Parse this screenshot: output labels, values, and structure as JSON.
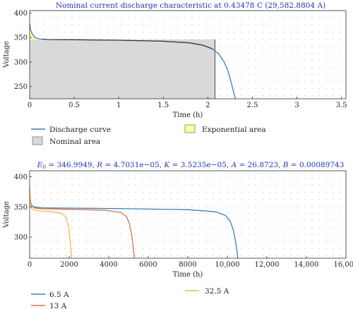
{
  "chart_data": [
    {
      "type": "area",
      "title": "Nominal current discharge characteristic at 0.43478 C (29,582.8804 A)",
      "xlabel": "Time (h)",
      "ylabel": "Voltage",
      "xlim": [
        0,
        3.55
      ],
      "ylim": [
        225,
        405
      ],
      "x_ticks": [
        0,
        0.5,
        1,
        1.5,
        2,
        2.5,
        3,
        3.5
      ],
      "x_tick_labels": [
        "0",
        "0.5",
        "1",
        "1.5",
        "2",
        "2.5",
        "3",
        "3.5"
      ],
      "y_ticks": [
        250,
        300,
        350,
        400
      ],
      "y_tick_labels": [
        "250",
        "300",
        "350",
        "400"
      ],
      "grid": "dotted",
      "legend_position": "bottom",
      "series": [
        {
          "name": "Discharge curve",
          "color": "#3b7fb8",
          "x": [
            0,
            0.01,
            0.03,
            0.06,
            0.1,
            0.15,
            0.2,
            0.5,
            1.0,
            1.5,
            1.8,
            1.95,
            2.05,
            2.12,
            2.18,
            2.22,
            2.26,
            2.29,
            2.31
          ],
          "y": [
            378,
            366,
            357,
            350,
            347.5,
            346.5,
            346,
            345.5,
            344.5,
            342.5,
            339,
            334,
            327,
            317,
            301,
            285,
            260,
            238,
            225
          ]
        },
        {
          "name": "Nominal area",
          "color": "#d9d9d9",
          "x": [
            0,
            2.08
          ],
          "y_top": 346
        },
        {
          "name": "Exponential area",
          "color": "#ffff99",
          "x": [
            0,
            0.15
          ]
        }
      ]
    },
    {
      "type": "line",
      "title": "E_0 = 346.9949, R = 4.7031e−05, K = 3.5235e−05, A = 26.8723, B = 0.00089743",
      "title_parts": {
        "e_symbol": "E",
        "e_subscript": "0",
        "e_value": " = 346.9949, ",
        "r_symbol": "R",
        "r_value": " = 4.7031e−05, ",
        "k_symbol": "K",
        "k_value": " = 3.5235e−05, ",
        "a_symbol": "A",
        "a_value": " = 26.8723, ",
        "b_symbol": "B",
        "b_value": " = 0.00089743"
      },
      "xlabel": "Time (h)",
      "ylabel": "Voltage",
      "xlim": [
        0,
        16000
      ],
      "ylim": [
        265,
        410
      ],
      "x_ticks": [
        0,
        2000,
        4000,
        6000,
        8000,
        10000,
        12000,
        14000,
        16000
      ],
      "x_tick_labels": [
        "0",
        "2000",
        "4000",
        "6000",
        "8000",
        "10,000",
        "12,000",
        "14,000",
        "16,000"
      ],
      "y_ticks": [
        300,
        350,
        400
      ],
      "y_tick_labels": [
        "300",
        "350",
        "400"
      ],
      "grid": "dotted",
      "legend_position": "bottom",
      "series": [
        {
          "name": "6.5 A",
          "color": "#3b7fb8",
          "x": [
            0,
            30,
            80,
            150,
            300,
            600,
            2000,
            5000,
            8000,
            9400,
            9900,
            10150,
            10300,
            10400,
            10480,
            10530
          ],
          "y": [
            372,
            362,
            354,
            351,
            349.5,
            348.5,
            348,
            347,
            345.5,
            342,
            336,
            326,
            312,
            296,
            280,
            265
          ]
        },
        {
          "name": "13 A",
          "color": "#d4734a",
          "x": [
            0,
            20,
            60,
            120,
            250,
            600,
            2000,
            3800,
            4600,
            4900,
            5050,
            5150,
            5220,
            5270,
            5300
          ],
          "y": [
            378,
            366,
            356,
            351,
            348,
            347,
            346,
            344.5,
            341,
            334,
            322,
            305,
            288,
            273,
            265
          ]
        },
        {
          "name": "32.5 A",
          "color": "#f2b84a",
          "x": [
            0,
            15,
            40,
            90,
            200,
            500,
            1200,
            1650,
            1850,
            1960,
            2030,
            2080,
            2110
          ],
          "y": [
            385,
            368,
            356,
            348,
            345,
            343.5,
            342,
            339,
            332,
            318,
            300,
            282,
            265
          ]
        }
      ]
    }
  ]
}
